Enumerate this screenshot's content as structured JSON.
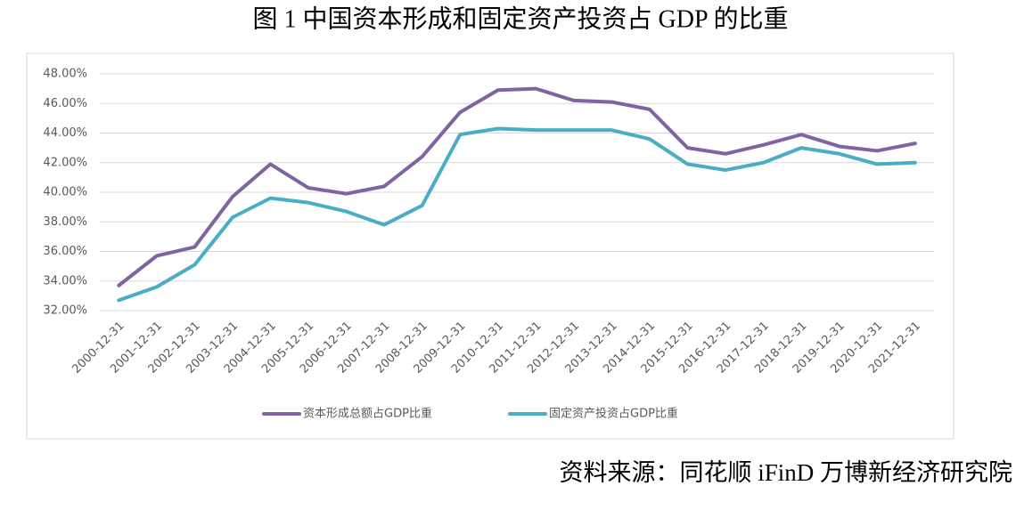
{
  "chart_data": {
    "type": "line",
    "title": "图 1 中国资本形成和固定资产投资占 GDP 的比重",
    "source": "资料来源：同花顺 iFinD 万博新经济研究院",
    "categories": [
      "2000-12-31",
      "2001-12-31",
      "2002-12-31",
      "2003-12-31",
      "2004-12-31",
      "2005-12-31",
      "2006-12-31",
      "2007-12-31",
      "2008-12-31",
      "2009-12-31",
      "2010-12-31",
      "2011-12-31",
      "2012-12-31",
      "2013-12-31",
      "2014-12-31",
      "2015-12-31",
      "2016-12-31",
      "2017-12-31",
      "2018-12-31",
      "2019-12-31",
      "2020-12-31",
      "2021-12-31"
    ],
    "series": [
      {
        "name": "资本形成总额占GDP比重",
        "color": "#8064a2",
        "values": [
          33.7,
          35.7,
          36.3,
          39.7,
          41.9,
          40.3,
          39.9,
          40.4,
          42.4,
          45.4,
          46.9,
          47.0,
          46.2,
          46.1,
          45.6,
          43.0,
          42.6,
          43.2,
          43.9,
          43.1,
          42.8,
          43.3
        ]
      },
      {
        "name": "固定资产投资占GDP比重",
        "color": "#4bacc6",
        "values": [
          32.7,
          33.6,
          35.1,
          38.3,
          39.6,
          39.3,
          38.7,
          37.8,
          39.1,
          43.9,
          44.3,
          44.2,
          44.2,
          44.2,
          43.6,
          41.9,
          41.5,
          42.0,
          43.0,
          42.6,
          41.9,
          42.0
        ]
      }
    ],
    "ylim": [
      32,
      48
    ],
    "yticks": [
      {
        "value": 32,
        "label": "32.00%"
      },
      {
        "value": 34,
        "label": "34.00%"
      },
      {
        "value": 36,
        "label": "36.00%"
      },
      {
        "value": 38,
        "label": "38.00%"
      },
      {
        "value": 40,
        "label": "40.00%"
      },
      {
        "value": 42,
        "label": "42.00%"
      },
      {
        "value": 44,
        "label": "44.00%"
      },
      {
        "value": 46,
        "label": "46.00%"
      },
      {
        "value": 48,
        "label": "48.00%"
      }
    ],
    "grid": true
  }
}
